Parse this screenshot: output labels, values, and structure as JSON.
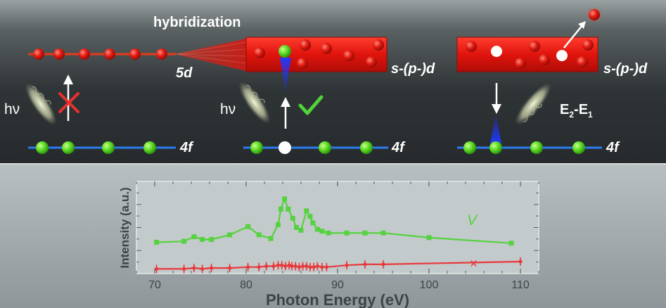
{
  "top": {
    "hybridization_label": "hybridization",
    "level_5d": "5d",
    "band_label": "s-(p-)d",
    "level_4f": "4f",
    "photon_label": "hν",
    "emission_label_main": "E",
    "emission_sub1": "2",
    "emission_dash": "-E",
    "emission_sub2": "1"
  },
  "chart_data": {
    "type": "line",
    "xlabel": "Photon Energy (eV)",
    "ylabel": "Intensity (a.u.)",
    "xlim": [
      68,
      112
    ],
    "ylim": [
      0,
      1
    ],
    "xticks": [
      70,
      80,
      90,
      100,
      110
    ],
    "grid": false,
    "series": [
      {
        "name": "V",
        "color": "#55d23f",
        "x": [
          70.2,
          73.2,
          74.3,
          75.2,
          76.2,
          78.2,
          80.2,
          81.4,
          82.7,
          83.5,
          83.8,
          84.2,
          84.6,
          85.1,
          85.5,
          86.0,
          86.6,
          87.0,
          87.3,
          87.8,
          88.3,
          89.0,
          91.0,
          93.0,
          95.0,
          100.0,
          109.0
        ],
        "y": [
          0.34,
          0.35,
          0.4,
          0.37,
          0.37,
          0.42,
          0.51,
          0.42,
          0.38,
          0.53,
          0.7,
          0.81,
          0.7,
          0.6,
          0.5,
          0.47,
          0.68,
          0.62,
          0.55,
          0.48,
          0.46,
          0.44,
          0.44,
          0.44,
          0.44,
          0.39,
          0.33
        ]
      },
      {
        "name": "×",
        "color": "#e8383c",
        "x": [
          70.2,
          73.2,
          74.3,
          75.2,
          76.2,
          78.2,
          80.2,
          81.4,
          82.2,
          83.0,
          83.5,
          83.9,
          84.3,
          84.7,
          85.0,
          85.4,
          85.8,
          86.2,
          86.6,
          87.0,
          87.4,
          87.8,
          88.3,
          88.8,
          91.0,
          93.0,
          95.0,
          110.0
        ],
        "y": [
          0.05,
          0.05,
          0.06,
          0.05,
          0.06,
          0.06,
          0.07,
          0.07,
          0.08,
          0.08,
          0.09,
          0.09,
          0.08,
          0.09,
          0.08,
          0.08,
          0.07,
          0.08,
          0.08,
          0.07,
          0.07,
          0.08,
          0.07,
          0.07,
          0.09,
          0.1,
          0.1,
          0.13
        ]
      }
    ],
    "annotations": [
      "V",
      "×"
    ]
  }
}
